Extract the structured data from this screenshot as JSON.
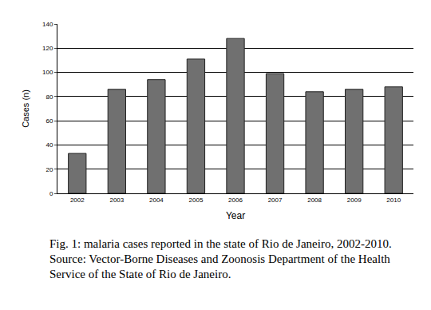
{
  "chart_data": {
    "type": "bar",
    "x_label": "Year",
    "y_label": "Cases (n)",
    "caption": "Fig. 1: malaria cases reported in the state of Rio de Janeiro, 2002-2010. Source: Vector-Borne Diseases and Zoonosis Department of the Health Service of the State of Rio de Janeiro.",
    "categories": [
      "2002",
      "2003",
      "2004",
      "2005",
      "2006",
      "2007",
      "2008",
      "2009",
      "2010"
    ],
    "values": [
      33,
      86,
      94,
      111,
      128,
      99,
      84,
      86,
      88
    ],
    "color": "#707070",
    "ylim": [
      0,
      140
    ],
    "yticks": [
      0,
      20,
      40,
      60,
      80,
      100,
      120,
      140
    ],
    "grid": true
  }
}
